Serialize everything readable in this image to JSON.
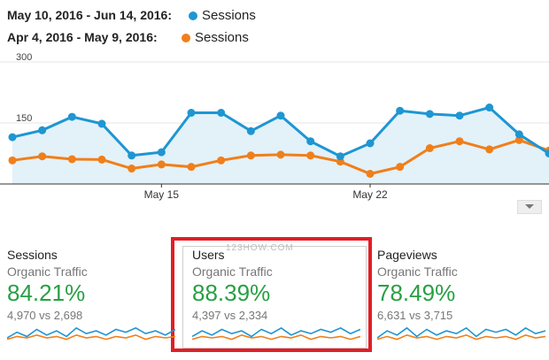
{
  "legend": [
    {
      "range": "May 10, 2016 - Jun 14, 2016:",
      "series": "Sessions",
      "color": "#1e96d2"
    },
    {
      "range": "Apr 4, 2016 - May 9, 2016:",
      "series": "Sessions",
      "color": "#f07f1a"
    }
  ],
  "watermark": "123HOW.COM",
  "chart_data": {
    "type": "line",
    "ylim": [
      0,
      300
    ],
    "yticks": [
      "300",
      "150"
    ],
    "xticks": [
      "May 15",
      "May 22"
    ],
    "grid": true,
    "series": [
      {
        "name": "Sessions",
        "color": "#1e96d2",
        "fill": "#e3f1f9",
        "values": [
          115,
          132,
          165,
          148,
          70,
          78,
          175,
          175,
          130,
          168,
          105,
          68,
          100,
          180,
          172,
          168,
          188,
          122,
          75
        ]
      },
      {
        "name": "Sessions",
        "color": "#f07f1a",
        "values": [
          58,
          68,
          61,
          60,
          38,
          48,
          42,
          58,
          70,
          72,
          70,
          55,
          25,
          42,
          88,
          105,
          85,
          108,
          82
        ]
      }
    ]
  },
  "cards": [
    {
      "title": "Sessions",
      "subtitle": "Organic Traffic",
      "percent": "84.21%",
      "compare": "4,970 vs 2,698"
    },
    {
      "title": "Users",
      "subtitle": "Organic Traffic",
      "percent": "88.39%",
      "compare": "4,397 vs 2,334"
    },
    {
      "title": "Pageviews",
      "subtitle": "Organic Traffic",
      "percent": "78.49%",
      "compare": "6,631 vs 3,715"
    }
  ],
  "sparklines": [
    {
      "blue": [
        5,
        9,
        6,
        11,
        7,
        10,
        6,
        12,
        8,
        10,
        7,
        11,
        9,
        12,
        8,
        10,
        7,
        11
      ],
      "orange": [
        4,
        6,
        5,
        7,
        5,
        6,
        4,
        7,
        5,
        6,
        4,
        6,
        5,
        7,
        4,
        6,
        5,
        6
      ]
    },
    {
      "blue": [
        6,
        10,
        7,
        11,
        8,
        10,
        6,
        11,
        8,
        12,
        7,
        10,
        8,
        11,
        9,
        12,
        8,
        11
      ],
      "orange": [
        4,
        6,
        5,
        6,
        4,
        7,
        5,
        6,
        4,
        6,
        5,
        7,
        4,
        6,
        5,
        6,
        4,
        6
      ]
    },
    {
      "blue": [
        5,
        10,
        7,
        12,
        6,
        11,
        7,
        10,
        8,
        12,
        6,
        11,
        9,
        11,
        7,
        12,
        8,
        10
      ],
      "orange": [
        4,
        6,
        4,
        7,
        5,
        6,
        4,
        6,
        5,
        7,
        4,
        6,
        5,
        6,
        4,
        7,
        5,
        6
      ]
    }
  ]
}
